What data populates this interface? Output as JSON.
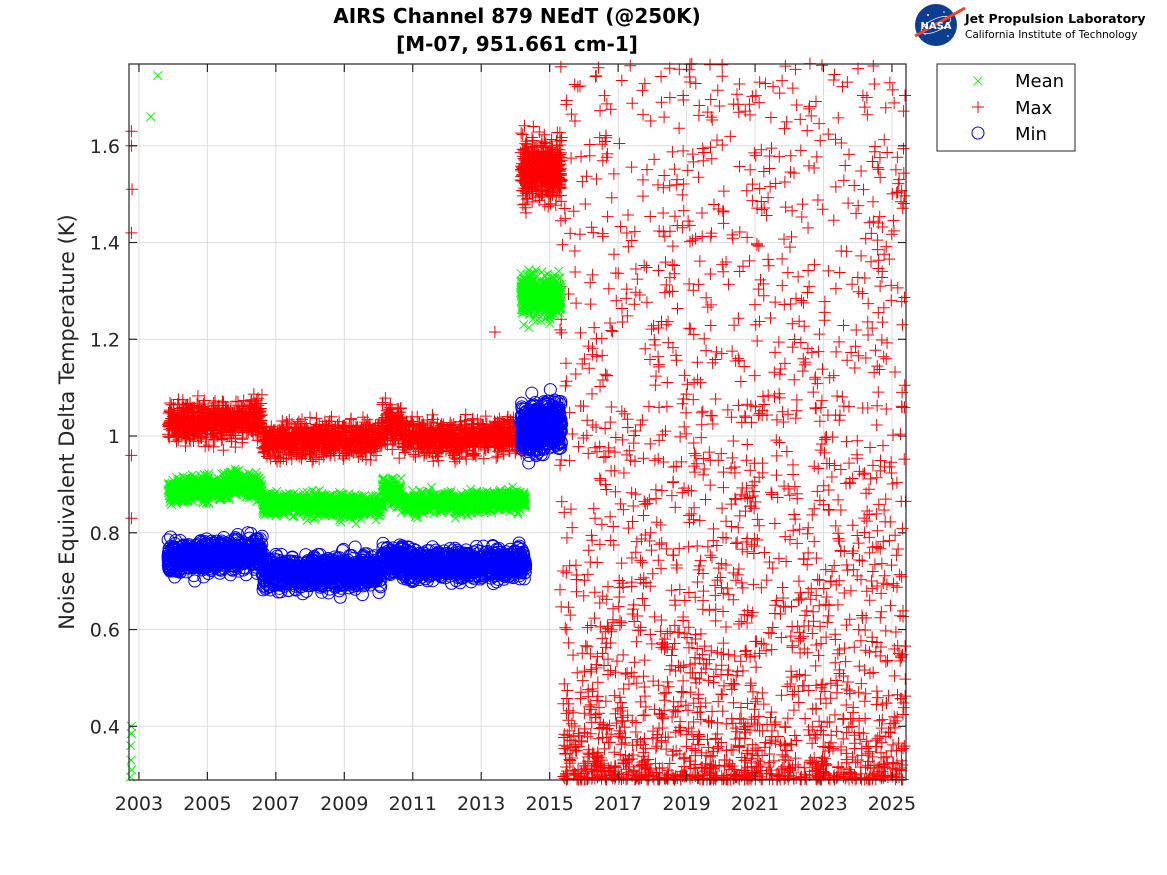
{
  "logo": {
    "agency": "NASA",
    "title": "Jet Propulsion Laboratory",
    "subtitle": "California Institute of Technology"
  },
  "chart_data": {
    "type": "scatter",
    "title": [
      "AIRS Channel 879 NEdT (@250K)",
      "[M-07, 951.661 cm-1]"
    ],
    "xlabel": "",
    "ylabel": "Noise Equivalent Delta Temperature (K)",
    "xlim": [
      2002.71,
      2025.41
    ],
    "ylim": [
      0.289,
      1.769
    ],
    "grid": true,
    "legend_position": "outside-top-right",
    "x_ticks": [
      2003,
      2005,
      2007,
      2009,
      2011,
      2013,
      2015,
      2017,
      2019,
      2021,
      2023,
      2025
    ],
    "x_tick_labels": [
      "2003",
      "2005",
      "2007",
      "2009",
      "2011",
      "2013",
      "2015",
      "2017",
      "2019",
      "2021",
      "2023",
      "2025"
    ],
    "y_ticks": [
      0.4,
      0.6,
      0.8,
      1.0,
      1.2,
      1.4,
      1.6
    ],
    "y_tick_labels": [
      "0.4",
      "0.6",
      "0.8",
      "1",
      "1.2",
      "1.4",
      "1.6"
    ],
    "colors": {
      "Mean": "#00ff00",
      "Max": "#ff0000",
      "Min": "#0000ff"
    },
    "series": [
      {
        "name": "Mean",
        "marker": "x",
        "explicit_points": [
          [
            2003.55,
            1.745
          ],
          [
            2003.35,
            1.66
          ],
          [
            2002.78,
            0.4
          ],
          [
            2002.78,
            0.385
          ],
          [
            2002.76,
            0.36
          ],
          [
            2002.77,
            0.33
          ],
          [
            2002.79,
            0.31
          ],
          [
            2002.75,
            0.295
          ]
        ],
        "segments": [
          {
            "x": [
              2003.85,
              2005.6
            ],
            "center": [
              0.885,
              0.895
            ],
            "spread": 0.018,
            "n": 420
          },
          {
            "x": [
              2005.6,
              2006.6
            ],
            "center": [
              0.905,
              0.89
            ],
            "spread": 0.018,
            "n": 240
          },
          {
            "x": [
              2006.6,
              2010.1
            ],
            "center": [
              0.86,
              0.855
            ],
            "spread": 0.016,
            "n": 800
          },
          {
            "x": [
              2010.1,
              2010.7
            ],
            "center": [
              0.885,
              0.88
            ],
            "spread": 0.02,
            "n": 140
          },
          {
            "x": [
              2010.7,
              2014.3
            ],
            "center": [
              0.86,
              0.868
            ],
            "spread": 0.015,
            "n": 800
          },
          {
            "x": [
              2014.15,
              2015.35
            ],
            "center": [
              1.29,
              1.29
            ],
            "spread": 0.03,
            "n": 450
          }
        ]
      },
      {
        "name": "Max",
        "marker": "+",
        "explicit_points": [
          [
            2002.78,
            1.63
          ],
          [
            2002.78,
            1.6
          ],
          [
            2002.8,
            1.51
          ],
          [
            2002.78,
            1.42
          ],
          [
            2002.78,
            0.96
          ],
          [
            2002.78,
            0.83
          ],
          [
            2013.4,
            1.215
          ]
        ],
        "segments": [
          {
            "x": [
              2003.85,
              2006.6
            ],
            "center": [
              1.025,
              1.035
            ],
            "spread": 0.028,
            "n": 650
          },
          {
            "x": [
              2006.6,
              2010.1
            ],
            "center": [
              0.99,
              0.995
            ],
            "spread": 0.025,
            "n": 800
          },
          {
            "x": [
              2010.1,
              2010.7
            ],
            "center": [
              1.03,
              1.02
            ],
            "spread": 0.03,
            "n": 140
          },
          {
            "x": [
              2010.7,
              2014.3
            ],
            "center": [
              0.995,
              1.0
            ],
            "spread": 0.025,
            "n": 800
          },
          {
            "x": [
              2014.15,
              2015.35
            ],
            "center": [
              1.55,
              1.55
            ],
            "spread": 0.045,
            "n": 450
          }
        ],
        "scatter_region": {
          "x": [
            2015.3,
            2025.4
          ],
          "y": [
            0.29,
            1.77
          ],
          "n": 2200,
          "bias_low": 2.2
        }
      },
      {
        "name": "Min",
        "marker": "o",
        "explicit_points": [],
        "segments": [
          {
            "x": [
              2003.85,
              2006.6
            ],
            "center": [
              0.745,
              0.76
            ],
            "spread": 0.022,
            "n": 650
          },
          {
            "x": [
              2006.6,
              2010.1
            ],
            "center": [
              0.715,
              0.72
            ],
            "spread": 0.024,
            "n": 800
          },
          {
            "x": [
              2010.1,
              2010.7
            ],
            "center": [
              0.745,
              0.745
            ],
            "spread": 0.02,
            "n": 140
          },
          {
            "x": [
              2010.7,
              2014.3
            ],
            "center": [
              0.735,
              0.735
            ],
            "spread": 0.022,
            "n": 800
          },
          {
            "x": [
              2014.15,
              2015.35
            ],
            "center": [
              1.02,
              1.02
            ],
            "spread": 0.035,
            "n": 450
          }
        ]
      }
    ]
  }
}
